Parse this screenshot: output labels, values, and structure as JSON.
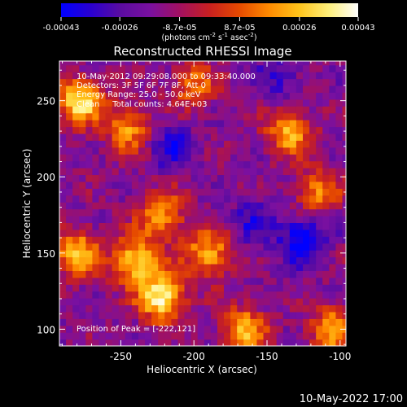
{
  "colorbar": {
    "tick_labels": [
      "-0.00043",
      "-0.00026",
      "-8.7e-05",
      "8.7e-05",
      "0.00026",
      "0.00043"
    ],
    "range": [
      -0.00043,
      0.00043
    ],
    "unit_label": {
      "prefix": "(photons cm",
      "sup1": "-2",
      "mid1": " s",
      "sup2": "-1",
      "mid2": " asec",
      "sup3": "-2",
      "suffix": ")"
    },
    "colormap": [
      "#0000ff",
      "#2a00d0",
      "#5a0ca0",
      "#7a10a0",
      "#a21060",
      "#c82020",
      "#e64a00",
      "#ff8a00",
      "#ffc31a",
      "#fff07a",
      "#ffffff"
    ]
  },
  "chart_data": {
    "type": "heatmap",
    "title": "Reconstructed RHESSI Image",
    "xlabel": "Heliocentric X (arcsec)",
    "ylabel": "Heliocentric Y (arcsec)",
    "xlim": [
      -292,
      -96
    ],
    "ylim": [
      89,
      276
    ],
    "x_ticks": [
      -250,
      -200,
      -150,
      -100
    ],
    "x_tick_labels": [
      "-250",
      "-200",
      "-150",
      "-100"
    ],
    "y_ticks": [
      100,
      150,
      200,
      250
    ],
    "y_tick_labels": [
      "100",
      "150",
      "200",
      "250"
    ],
    "grid": false,
    "annotations": [
      "10-May-2012 09:29:08.000 to 09:33:40.000",
      "Detectors: 3F 5F 6F 7F 8F, Att 0",
      "Energy Range: 25.0 - 50.0 keV",
      "Clean     Total counts: 4.64E+03"
    ],
    "peak_label": "Position of Peak = [-222,121]",
    "peak": [
      -222,
      121
    ],
    "bright_regions": [
      {
        "x": -222,
        "y": 121,
        "intensity": 1.0
      },
      {
        "x": -240,
        "y": 145,
        "intensity": 0.85
      },
      {
        "x": -280,
        "y": 150,
        "intensity": 0.8
      },
      {
        "x": -222,
        "y": 175,
        "intensity": 0.7
      },
      {
        "x": -190,
        "y": 150,
        "intensity": 0.75
      },
      {
        "x": -165,
        "y": 100,
        "intensity": 0.7
      },
      {
        "x": -278,
        "y": 250,
        "intensity": 0.9
      },
      {
        "x": -245,
        "y": 232,
        "intensity": 0.65
      },
      {
        "x": -135,
        "y": 230,
        "intensity": 0.7
      },
      {
        "x": -115,
        "y": 190,
        "intensity": 0.6
      },
      {
        "x": -105,
        "y": 100,
        "intensity": 0.7
      },
      {
        "x": -200,
        "y": 260,
        "intensity": 0.55
      }
    ],
    "dim_regions": [
      {
        "x": -125,
        "y": 160,
        "intensity": -0.6
      },
      {
        "x": -215,
        "y": 220,
        "intensity": -0.35
      },
      {
        "x": -160,
        "y": 170,
        "intensity": -0.3
      },
      {
        "x": -140,
        "y": 265,
        "intensity": -0.3
      }
    ]
  },
  "footer": {
    "timestamp": "10-May-2022 17:00"
  }
}
